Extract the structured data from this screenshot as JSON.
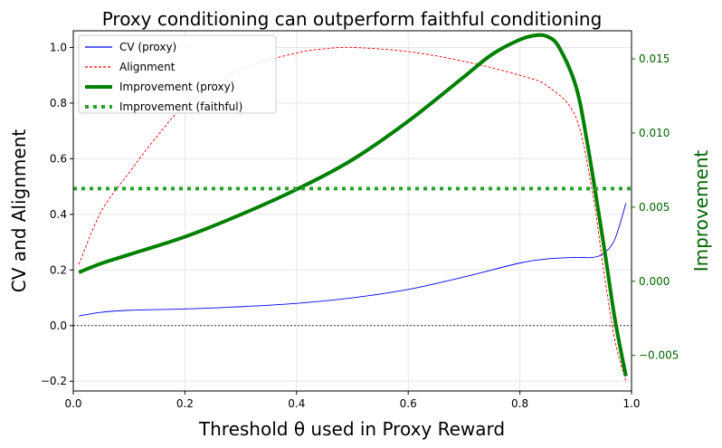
{
  "chart_data": {
    "type": "line",
    "title": "Proxy conditioning can outperform faithful conditioning",
    "xlabel": "Threshold θ used in Proxy Reward",
    "ylabel_left": "CV and Alignment",
    "ylabel_right": "Improvement",
    "xlim": [
      0.0,
      1.0
    ],
    "ylim_left": [
      -0.235,
      1.06
    ],
    "ylim_right": [
      -0.0074,
      0.0169
    ],
    "x_ticks": [
      "0.0",
      "0.2",
      "0.4",
      "0.6",
      "0.8",
      "1.0"
    ],
    "y_left_ticks": [
      "−0.2",
      "0.0",
      "0.2",
      "0.4",
      "0.6",
      "0.8",
      "1.0"
    ],
    "y_right_ticks": [
      "−0.005",
      "0.000",
      "0.005",
      "0.010",
      "0.015"
    ],
    "grid": true,
    "legend_position": "top-left",
    "colors": {
      "cv": "#0000ff",
      "alignment": "#ff0000",
      "improvement_proxy": "#008000",
      "improvement_faithful": "#2ca02c",
      "right_axis": "#006400",
      "zero_line": "#000000"
    },
    "series": [
      {
        "name": "CV (proxy)",
        "axis": "left",
        "style": "solid-thin",
        "x": [
          0.01,
          0.05,
          0.1,
          0.2,
          0.3,
          0.4,
          0.5,
          0.6,
          0.7,
          0.8,
          0.85,
          0.9,
          0.93,
          0.95,
          0.97,
          0.99
        ],
        "y": [
          0.035,
          0.048,
          0.055,
          0.06,
          0.068,
          0.08,
          0.1,
          0.13,
          0.175,
          0.225,
          0.24,
          0.245,
          0.245,
          0.26,
          0.31,
          0.44
        ]
      },
      {
        "name": "Alignment",
        "axis": "left",
        "style": "dashed-thin",
        "x": [
          0.01,
          0.05,
          0.1,
          0.15,
          0.2,
          0.3,
          0.4,
          0.45,
          0.5,
          0.6,
          0.7,
          0.8,
          0.85,
          0.9,
          0.93,
          0.95,
          0.97,
          0.99
        ],
        "y": [
          0.22,
          0.41,
          0.55,
          0.68,
          0.79,
          0.92,
          0.98,
          0.995,
          1.0,
          0.985,
          0.95,
          0.9,
          0.86,
          0.75,
          0.48,
          0.2,
          -0.05,
          -0.2
        ]
      },
      {
        "name": "Improvement (proxy)",
        "axis": "right",
        "style": "solid-thick",
        "x": [
          0.01,
          0.05,
          0.1,
          0.2,
          0.3,
          0.4,
          0.5,
          0.6,
          0.7,
          0.75,
          0.8,
          0.83,
          0.85,
          0.87,
          0.9,
          0.92,
          0.95,
          0.97,
          0.99
        ],
        "y": [
          0.0006,
          0.0012,
          0.0018,
          0.003,
          0.0045,
          0.0062,
          0.0082,
          0.0108,
          0.0138,
          0.0153,
          0.0163,
          0.0166,
          0.0165,
          0.0158,
          0.0132,
          0.0095,
          0.0025,
          -0.0025,
          -0.0064
        ]
      },
      {
        "name": "Improvement (faithful)",
        "axis": "right",
        "style": "dotted-thick",
        "x": [
          0.0,
          1.0
        ],
        "y": [
          0.00625,
          0.00625
        ]
      }
    ]
  }
}
